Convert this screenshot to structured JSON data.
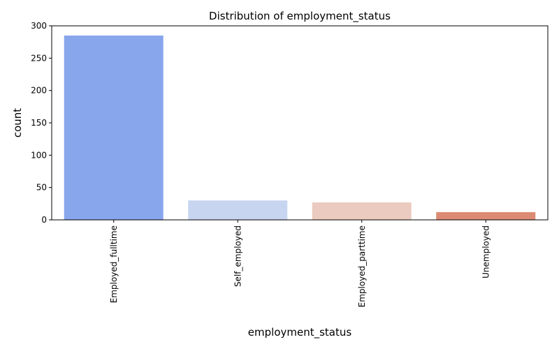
{
  "chart_data": {
    "type": "bar",
    "title": "Distribution of employment_status",
    "xlabel": "employment_status",
    "ylabel": "count",
    "categories": [
      "Employed_fulltime",
      "Self_employed",
      "Employed_parttime",
      "Unemployed"
    ],
    "values": [
      285,
      30,
      27,
      12
    ],
    "colors": [
      "#88a6ec",
      "#c7d5f0",
      "#ebcbbf",
      "#dc8b73"
    ],
    "ylim": [
      0,
      300
    ],
    "yticks": [
      0,
      50,
      100,
      150,
      200,
      250,
      300
    ],
    "ytick_labels": [
      "0",
      "50",
      "100",
      "150",
      "200",
      "250",
      "300"
    ],
    "grid": false,
    "legend": "none"
  }
}
